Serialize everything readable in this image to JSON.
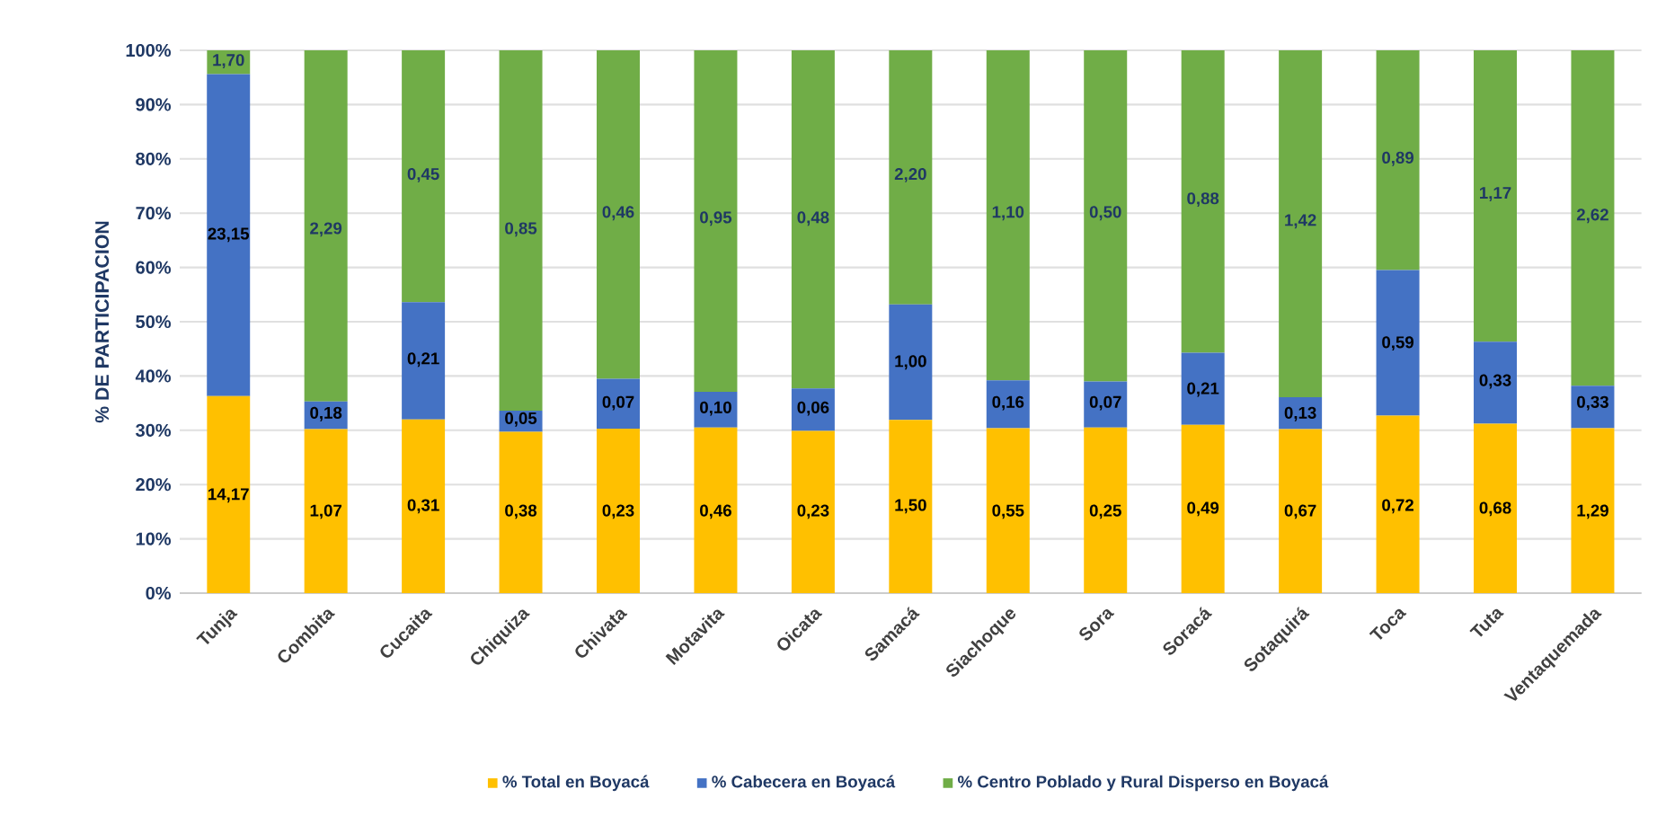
{
  "chart_data": {
    "type": "bar",
    "stacked": true,
    "ylabel": "% DE PARTICIPACION",
    "categories": [
      "Tunja",
      "Combita",
      "Cucaita",
      "Chiquiza",
      "Chivata",
      "Motavita",
      "Oicata",
      "Samacá",
      "Siachoque",
      "Sora",
      "Soracá",
      "Sotaquirá",
      "Toca",
      "Tuta",
      "Ventaquemada"
    ],
    "series": [
      {
        "name": "% Total en Boyacá",
        "color": "#ffc000",
        "values": [
          36.3,
          30.2,
          32.0,
          29.7,
          30.3,
          30.5,
          29.9,
          31.9,
          30.4,
          30.5,
          31.0,
          30.2,
          32.7,
          31.2,
          30.4
        ]
      },
      {
        "name": "% Cabecera en Boyacá",
        "color": "#4472c4",
        "values": [
          59.3,
          5.1,
          21.6,
          3.9,
          9.2,
          6.6,
          7.8,
          21.3,
          8.8,
          8.5,
          13.3,
          5.9,
          26.8,
          15.1,
          7.8
        ]
      },
      {
        "name": "% Centro Poblado y Rural Disperso en Boyacá",
        "color": "#70ad47",
        "values": [
          4.4,
          64.7,
          46.4,
          66.4,
          60.5,
          62.9,
          62.3,
          46.8,
          60.8,
          61.0,
          55.7,
          63.9,
          40.5,
          53.7,
          61.8
        ]
      }
    ],
    "annotations": [
      {
        "text": "14,17",
        "x": "Tunja",
        "y": 18
      },
      {
        "text": "1,07",
        "x": "Combita",
        "y": 15
      },
      {
        "text": "0,31",
        "x": "Cucaita",
        "y": 16
      },
      {
        "text": "0,38",
        "x": "Chiquiza",
        "y": 15
      },
      {
        "text": "0,23",
        "x": "Chivata",
        "y": 15
      },
      {
        "text": "0,46",
        "x": "Motavita",
        "y": 15
      },
      {
        "text": "0,23",
        "x": "Oicata",
        "y": 15
      },
      {
        "text": "1,50",
        "x": "Samacá",
        "y": 16
      },
      {
        "text": "0,55",
        "x": "Siachoque",
        "y": 15
      },
      {
        "text": "0,25",
        "x": "Sora",
        "y": 15
      },
      {
        "text": "0,49",
        "x": "Soracá",
        "y": 15.5
      },
      {
        "text": "0,67",
        "x": "Sotaquirá",
        "y": 15
      },
      {
        "text": "0,72",
        "x": "Toca",
        "y": 16
      },
      {
        "text": "0,68",
        "x": "Tuta",
        "y": 15.5
      },
      {
        "text": "1,29",
        "x": "Ventaquemada",
        "y": 15
      },
      {
        "text": "23,15",
        "x": "Tunja",
        "y": 66
      },
      {
        "text": "0,18",
        "x": "Combita",
        "y": 33
      },
      {
        "text": "0,21",
        "x": "Cucaita",
        "y": 43
      },
      {
        "text": "0,05",
        "x": "Chiquiza",
        "y": 32
      },
      {
        "text": "0,07",
        "x": "Chivata",
        "y": 35
      },
      {
        "text": "0,10",
        "x": "Motavita",
        "y": 34
      },
      {
        "text": "0,06",
        "x": "Oicata",
        "y": 34
      },
      {
        "text": "1,00",
        "x": "Samacá",
        "y": 42.5
      },
      {
        "text": "0,16",
        "x": "Siachoque",
        "y": 35
      },
      {
        "text": "0,07",
        "x": "Sora",
        "y": 35
      },
      {
        "text": "0,21",
        "x": "Soracá",
        "y": 37.5
      },
      {
        "text": "0,13",
        "x": "Sotaquirá",
        "y": 33
      },
      {
        "text": "0,59",
        "x": "Toca",
        "y": 46
      },
      {
        "text": "0,33",
        "x": "Tuta",
        "y": 39
      },
      {
        "text": "0,33",
        "x": "Ventaquemada",
        "y": 35
      },
      {
        "text": "1,70",
        "x": "Tunja",
        "y": 98
      },
      {
        "text": "2,29",
        "x": "Combita",
        "y": 67
      },
      {
        "text": "0,45",
        "x": "Cucaita",
        "y": 77
      },
      {
        "text": "0,85",
        "x": "Chiquiza",
        "y": 67
      },
      {
        "text": "0,46",
        "x": "Chivata",
        "y": 70
      },
      {
        "text": "0,95",
        "x": "Motavita",
        "y": 69
      },
      {
        "text": "0,48",
        "x": "Oicata",
        "y": 69
      },
      {
        "text": "2,20",
        "x": "Samacá",
        "y": 77
      },
      {
        "text": "1,10",
        "x": "Siachoque",
        "y": 70
      },
      {
        "text": "0,50",
        "x": "Sora",
        "y": 70
      },
      {
        "text": "0,88",
        "x": "Soracá",
        "y": 72.5
      },
      {
        "text": "1,42",
        "x": "Sotaquirá",
        "y": 68.5
      },
      {
        "text": "0,89",
        "x": "Toca",
        "y": 80
      },
      {
        "text": "1,17",
        "x": "Tuta",
        "y": 73.5
      },
      {
        "text": "2,62",
        "x": "Ventaquemada",
        "y": 69.5
      }
    ],
    "ylim": [
      0,
      100
    ],
    "yticks": [
      {
        "value": 0,
        "label": "0%"
      },
      {
        "value": 10,
        "label": "10%"
      },
      {
        "value": 20,
        "label": "20%"
      },
      {
        "value": 30,
        "label": "30%"
      },
      {
        "value": 40,
        "label": "40%"
      },
      {
        "value": 50,
        "label": "50%"
      },
      {
        "value": 60,
        "label": "60%"
      },
      {
        "value": 70,
        "label": "70%"
      },
      {
        "value": 80,
        "label": "80%"
      },
      {
        "value": 90,
        "label": "90%"
      },
      {
        "value": 100,
        "label": "100%"
      }
    ],
    "grid": "y",
    "legend": "bottom"
  }
}
